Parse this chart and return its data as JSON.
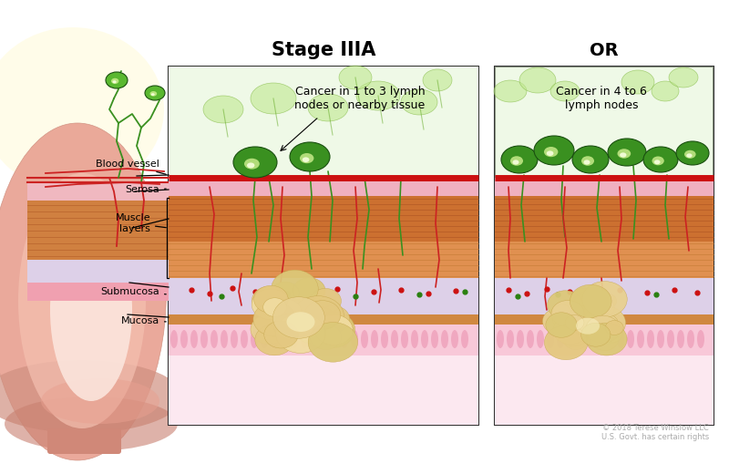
{
  "title_left": "Stage IIIA",
  "title_right": "OR",
  "label_left_desc": "Cancer in 1 to 3 lymph\nnodes or nearby tissue",
  "label_right_desc": "Cancer in 4 to 6\nlymph nodes",
  "labels": [
    "Blood vessel",
    "Serosa",
    "Muscle\nlayers",
    "Submucosa",
    "Mucosa"
  ],
  "copyright": "© 2018 Terese Winslow LLC\nU.S. Govt. has certain rights",
  "bg_color": "#ffffff",
  "box_border": "#333333",
  "lymph_bg_color": "#d8f0c0",
  "red_line_color": "#cc1111",
  "pink_serosa": "#f0b8c8",
  "muscle_dark": "#cc7030",
  "muscle_light": "#e09050",
  "submucosa_color": "#ddd0e8",
  "mucosa_color": "#f0a0b0",
  "villi_color": "#f8c8d8",
  "tumor_main": "#e8d090",
  "tumor_edge": "#d4b060",
  "lymph_dark_green": "#3a9020",
  "lymph_light_green": "#c0e890",
  "lymph_cancer_inner": "#e8f0a0",
  "lymph_bg_light": "#c8e8a8",
  "colon_outer": "#e8a090",
  "colon_mid": "#f0b8a8",
  "colon_inner": "#fce8e0",
  "lumen_pink": "#fce0e8"
}
